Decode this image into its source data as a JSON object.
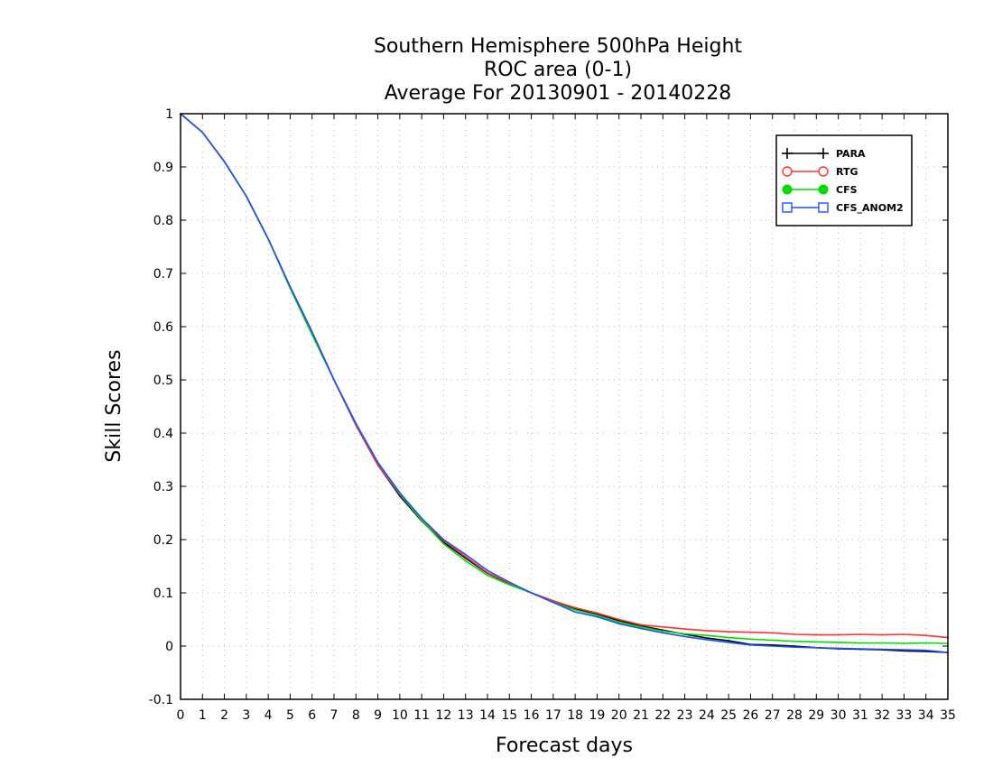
{
  "chart_data": {
    "type": "line",
    "title_lines": [
      "Southern Hemisphere 500hPa Height",
      "ROC area (0-1)",
      "Average For 20130901 - 20140228"
    ],
    "xlabel": "Forecast days",
    "ylabel": "Skill Scores",
    "xlim": [
      0,
      35
    ],
    "ylim": [
      -0.1,
      1
    ],
    "x_ticks": [
      0,
      1,
      2,
      3,
      4,
      5,
      6,
      7,
      8,
      9,
      10,
      11,
      12,
      13,
      14,
      15,
      16,
      17,
      18,
      19,
      20,
      21,
      22,
      23,
      24,
      25,
      26,
      27,
      28,
      29,
      30,
      31,
      32,
      33,
      34,
      35
    ],
    "y_ticks": [
      -0.1,
      0,
      0.1,
      0.2,
      0.3,
      0.4,
      0.5,
      0.6,
      0.7,
      0.8,
      0.9,
      1
    ],
    "y_tick_labels": [
      "-0.1",
      "0",
      "0.1",
      "0.2",
      "0.3",
      "0.4",
      "0.5",
      "0.6",
      "0.7",
      "0.8",
      "0.9",
      "1"
    ],
    "grid": true,
    "legend_position": "top-right",
    "x": [
      0,
      1,
      2,
      3,
      4,
      5,
      6,
      7,
      8,
      9,
      10,
      11,
      12,
      13,
      14,
      15,
      16,
      17,
      18,
      19,
      20,
      21,
      22,
      23,
      24,
      25,
      26,
      27,
      28,
      29,
      30,
      31,
      32,
      33,
      34,
      35
    ],
    "series": [
      {
        "name": "PARA",
        "color": "#000000",
        "marker": "plus",
        "values": [
          1.0,
          0.965,
          0.91,
          0.845,
          0.765,
          0.675,
          0.59,
          0.5,
          0.415,
          0.34,
          0.282,
          0.235,
          0.195,
          0.165,
          0.137,
          0.117,
          0.1,
          0.085,
          0.07,
          0.06,
          0.048,
          0.038,
          0.03,
          0.022,
          0.015,
          0.01,
          0.003,
          0.002,
          0.0,
          -0.003,
          -0.005,
          -0.006,
          -0.007,
          -0.009,
          -0.01,
          -0.012
        ]
      },
      {
        "name": "RTG",
        "color": "#ff3030",
        "marker": "circle-open",
        "values": [
          1.0,
          0.965,
          0.91,
          0.845,
          0.765,
          0.675,
          0.59,
          0.5,
          0.415,
          0.34,
          0.285,
          0.238,
          0.198,
          0.168,
          0.138,
          0.118,
          0.1,
          0.085,
          0.072,
          0.062,
          0.05,
          0.04,
          0.036,
          0.032,
          0.029,
          0.027,
          0.026,
          0.025,
          0.022,
          0.021,
          0.021,
          0.022,
          0.021,
          0.022,
          0.02,
          0.016
        ]
      },
      {
        "name": "CFS",
        "color": "#00dd00",
        "marker": "circle-filled",
        "values": [
          1.0,
          0.965,
          0.91,
          0.845,
          0.765,
          0.672,
          0.585,
          0.5,
          0.418,
          0.345,
          0.286,
          0.236,
          0.192,
          0.16,
          0.133,
          0.115,
          0.1,
          0.082,
          0.068,
          0.058,
          0.045,
          0.036,
          0.028,
          0.023,
          0.02,
          0.016,
          0.013,
          0.011,
          0.009,
          0.008,
          0.007,
          0.006,
          0.006,
          0.005,
          0.006,
          0.005
        ]
      },
      {
        "name": "CFS_ANOM2",
        "color": "#1e4fff",
        "marker": "square-open",
        "values": [
          1.0,
          0.965,
          0.91,
          0.845,
          0.765,
          0.675,
          0.59,
          0.5,
          0.418,
          0.345,
          0.288,
          0.24,
          0.2,
          0.172,
          0.142,
          0.12,
          0.1,
          0.082,
          0.064,
          0.055,
          0.042,
          0.033,
          0.025,
          0.018,
          0.012,
          0.007,
          0.002,
          0.0,
          -0.002,
          -0.003,
          -0.004,
          -0.005,
          -0.006,
          -0.007,
          -0.008,
          -0.012
        ]
      }
    ]
  }
}
